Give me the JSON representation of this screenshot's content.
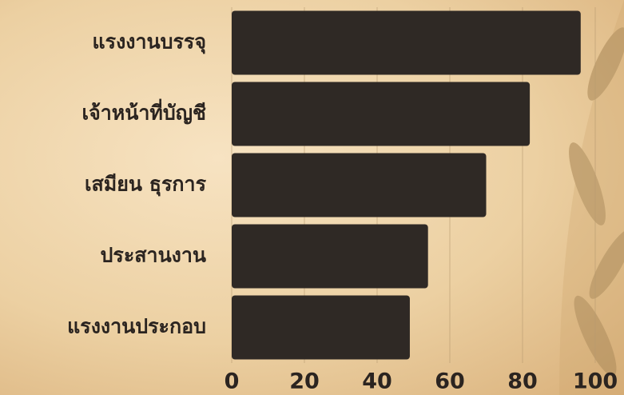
{
  "chart_data": {
    "type": "barh",
    "categories": [
      "แรงงานบรรจุ",
      "เจ้าหน้าที่บัญชี",
      "เสมียน ธุรการ",
      "ประสานงาน",
      "แรงงานประกอบ"
    ],
    "values": [
      96,
      82,
      70,
      54,
      49
    ],
    "color": "#2f2925",
    "xlim": [
      0,
      100
    ],
    "xticks": [
      0,
      20,
      40,
      60,
      80,
      100
    ],
    "grid": true
  }
}
